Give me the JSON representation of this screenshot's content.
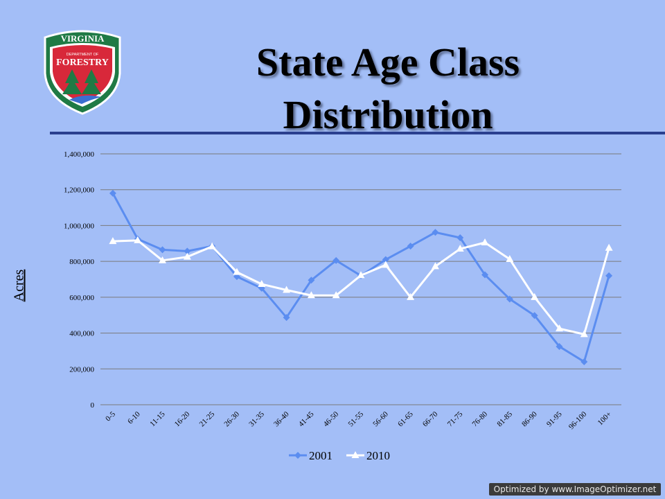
{
  "logo": {
    "line1": "VIRGINIA",
    "line2": "DEPARTMENT OF",
    "line3": "FORESTRY"
  },
  "title": {
    "line1": "State Age Class",
    "line2": "Distribution"
  },
  "watermark": "Optimized by www.ImageOptimizer.net",
  "colors": {
    "background": "#a3bef7",
    "series2001": "#5b8df0",
    "series2010": "#ffffff",
    "rule": "#2a3f8f",
    "grid": "#7a7a7a"
  },
  "chart_data": {
    "type": "line",
    "title": "",
    "xlabel": "",
    "ylabel": "Acres",
    "ylim": [
      0,
      1400000
    ],
    "yticks": [
      0,
      200000,
      400000,
      600000,
      800000,
      1000000,
      1200000,
      1400000
    ],
    "ytick_labels": [
      "0",
      "200,000",
      "400,000",
      "600,000",
      "800,000",
      "1,000,000",
      "1,200,000",
      "1,400,000"
    ],
    "grid": true,
    "legend": "bottom",
    "categories": [
      "0-5",
      "6-10",
      "11-15",
      "16-20",
      "21-25",
      "26-30",
      "31-35",
      "36-40",
      "41-45",
      "46-50",
      "51-55",
      "56-60",
      "61-65",
      "66-70",
      "71-75",
      "76-80",
      "81-85",
      "86-90",
      "91-95",
      "96-100",
      "100+"
    ],
    "series": [
      {
        "name": "2001",
        "marker": "diamond",
        "values": [
          1180000,
          925000,
          865000,
          857000,
          885000,
          715000,
          650000,
          487000,
          695000,
          805000,
          720000,
          810000,
          885000,
          962000,
          932000,
          725000,
          590000,
          498000,
          325000,
          240000,
          720000
        ]
      },
      {
        "name": "2010",
        "marker": "triangle",
        "values": [
          912000,
          917000,
          805000,
          825000,
          883000,
          740000,
          673000,
          640000,
          610000,
          610000,
          722000,
          780000,
          600000,
          772000,
          870000,
          905000,
          812000,
          600000,
          425000,
          393000,
          875000
        ]
      }
    ]
  }
}
